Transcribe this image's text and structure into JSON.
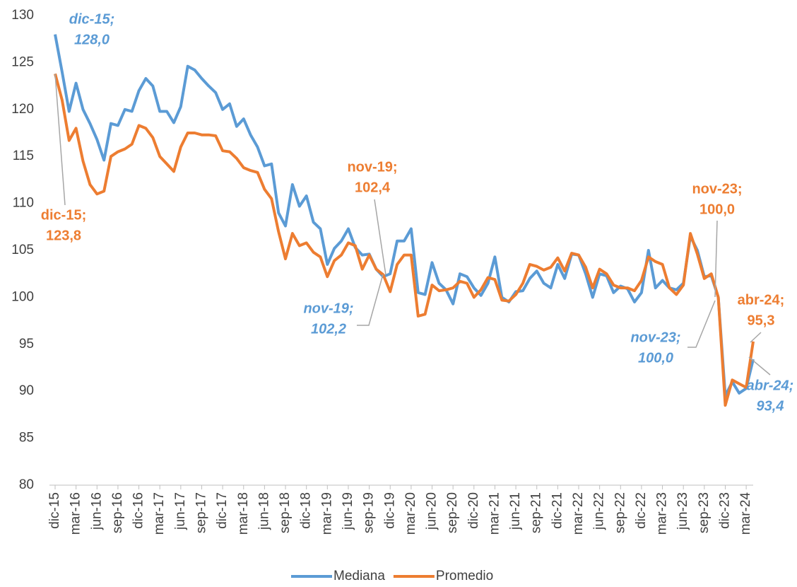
{
  "chart_data": {
    "type": "line",
    "categories": [
      "dic-15",
      null,
      null,
      "mar-16",
      null,
      null,
      "jun-16",
      null,
      null,
      "sep-16",
      null,
      null,
      "dic-16",
      null,
      null,
      "mar-17",
      null,
      null,
      "jun-17",
      null,
      null,
      "sep-17",
      null,
      null,
      "dic-17",
      null,
      null,
      "mar-18",
      null,
      null,
      "jun-18",
      null,
      null,
      "sep-18",
      null,
      null,
      "dic-18",
      null,
      null,
      "mar-19",
      null,
      null,
      "jun-19",
      null,
      null,
      "sep-19",
      null,
      null,
      "dic-19",
      null,
      null,
      "mar-20",
      null,
      null,
      "jun-20",
      null,
      null,
      "sep-20",
      null,
      null,
      "dic-20",
      null,
      null,
      "mar-21",
      null,
      null,
      "jun-21",
      null,
      null,
      "sep-21",
      null,
      null,
      "dic-21",
      null,
      null,
      "mar-22",
      null,
      null,
      "jun-22",
      null,
      null,
      "sep-22",
      null,
      null,
      "dic-22",
      null,
      null,
      "mar-23",
      null,
      null,
      "jun-23",
      null,
      null,
      "sep-23",
      null,
      null,
      "dic-23",
      null,
      null,
      "mar-24",
      null
    ],
    "series": [
      {
        "name": "Mediana",
        "color": "#5b9bd5",
        "values": [
          128.0,
          124,
          119.8,
          122.8,
          120,
          118.5,
          116.8,
          114.6,
          118.5,
          118.3,
          120,
          119.8,
          122,
          123.3,
          122.5,
          119.8,
          119.8,
          118.6,
          120.3,
          124.6,
          124.2,
          123.3,
          122.5,
          121.8,
          120,
          120.6,
          118.2,
          119,
          117.3,
          116,
          114,
          114.2,
          109,
          107.6,
          112,
          109.7,
          110.8,
          108,
          107.3,
          103.5,
          105.2,
          106,
          107.3,
          105.3,
          104.5,
          104.6,
          103,
          102.2,
          102.5,
          106,
          106,
          107.3,
          100.5,
          100.3,
          103.7,
          101.5,
          100.8,
          99.3,
          102.5,
          102.2,
          101,
          100.2,
          101.5,
          104.3,
          100,
          99.5,
          100.6,
          100.7,
          102,
          102.8,
          101.5,
          101,
          103.5,
          102,
          104.6,
          104.5,
          102.5,
          100,
          102.5,
          102.3,
          100.5,
          101.2,
          100.9,
          99.5,
          100.5,
          105,
          101,
          101.8,
          101,
          100.8,
          101.5,
          106.5,
          105,
          102.2,
          102.3,
          100.0,
          89.5,
          91,
          89.8,
          90.3,
          93.4
        ]
      },
      {
        "name": "Promedio",
        "color": "#ed7d31",
        "values": [
          123.8,
          121,
          116.7,
          118,
          114.5,
          112,
          111,
          111.3,
          115,
          115.5,
          115.8,
          116.3,
          118.3,
          118,
          117,
          115,
          114.2,
          113.4,
          116,
          117.5,
          117.5,
          117.3,
          117.3,
          117.2,
          115.6,
          115.5,
          114.8,
          113.8,
          113.5,
          113.3,
          111.5,
          110.5,
          107,
          104.1,
          106.8,
          105.5,
          105.8,
          104.8,
          104.3,
          102.2,
          103.9,
          104.5,
          105.8,
          105.5,
          103,
          104.5,
          103,
          102.4,
          100.6,
          103.5,
          104.5,
          104.5,
          98,
          98.2,
          101.3,
          100.7,
          100.8,
          101,
          101.7,
          101.5,
          100,
          100.8,
          102.1,
          101.9,
          99.7,
          99.6,
          100.3,
          101.5,
          103.5,
          103.3,
          102.9,
          103.2,
          104.2,
          102.8,
          104.7,
          104.5,
          103.2,
          101,
          103,
          102.5,
          101.3,
          101,
          101,
          100.7,
          101.8,
          104.3,
          103.8,
          103.5,
          101,
          100.3,
          101.3,
          106.8,
          104.6,
          102,
          102.5,
          100.0,
          88.5,
          91.2,
          90.8,
          90.4,
          95.3
        ]
      }
    ],
    "annotations": [
      [
        "dic-15;",
        "128,0"
      ],
      [
        "dic-15;",
        "123,8"
      ],
      [
        "nov-19;",
        "102,4"
      ],
      [
        "nov-19;",
        "102,2"
      ],
      [
        "nov-23;",
        "100,0"
      ],
      [
        "nov-23;",
        "100,0"
      ],
      [
        "abr-24;",
        "95,3"
      ],
      [
        "abr-24;",
        "93,4"
      ]
    ],
    "ylim": [
      80,
      130
    ],
    "yticks": [
      80,
      85,
      90,
      95,
      100,
      105,
      110,
      115,
      120,
      125,
      130
    ],
    "grid": false,
    "legend": "bottom"
  }
}
